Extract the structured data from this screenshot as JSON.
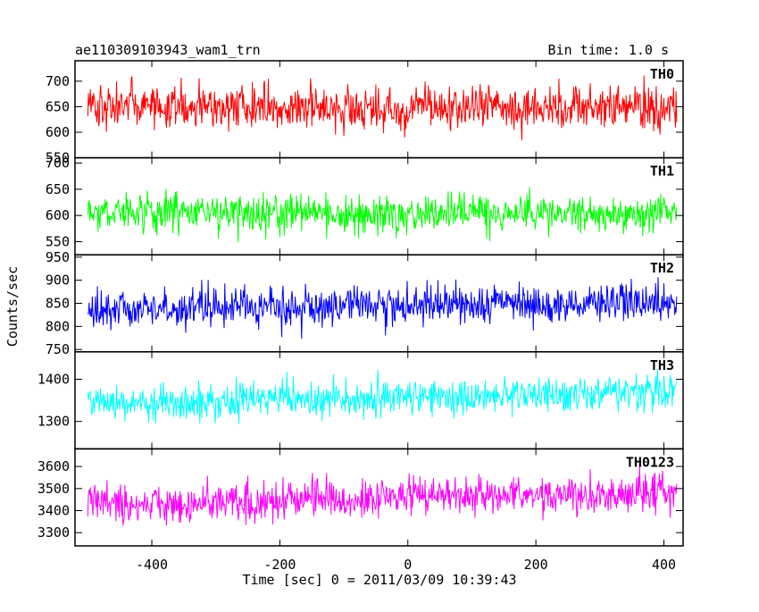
{
  "chart_data": {
    "type": "line",
    "title": "ae110309103943_wam1_trn",
    "subtitle": "Bin time: 1.0 s",
    "xlabel": "Time [sec] 0 = 2011/03/09 10:39:43",
    "ylabel": "Counts/sec",
    "xlim": [
      -520,
      430
    ],
    "x_range": [
      -500,
      420
    ],
    "x_step": 1,
    "x_ticks": [
      -400,
      -200,
      0,
      200,
      400
    ],
    "grid": false,
    "legend": "panel labels top-right",
    "panels": [
      {
        "name": "TH0",
        "color": "#ff0000",
        "ylim": [
          550,
          740
        ],
        "y_ticks": [
          550,
          600,
          650,
          700
        ],
        "mean": 648,
        "amplitude": 55,
        "trend": 0
      },
      {
        "name": "TH1",
        "color": "#00ff00",
        "ylim": [
          525,
          710
        ],
        "y_ticks": [
          550,
          600,
          650,
          700
        ],
        "mean": 605,
        "amplitude": 48,
        "trend": 0
      },
      {
        "name": "TH2",
        "color": "#0000ff",
        "ylim": [
          745,
          955
        ],
        "y_ticks": [
          750,
          800,
          850,
          900,
          950
        ],
        "mean": 845,
        "amplitude": 55,
        "trend": 8
      },
      {
        "name": "TH3",
        "color": "#00ffff",
        "ylim": [
          1235,
          1465
        ],
        "y_ticks": [
          1300,
          1400
        ],
        "mean": 1355,
        "amplitude": 55,
        "trend": 15
      },
      {
        "name": "TH0123",
        "color": "#ff00ff",
        "ylim": [
          3240,
          3680
        ],
        "y_ticks": [
          3300,
          3400,
          3500,
          3600
        ],
        "mean": 3455,
        "amplitude": 110,
        "trend": 25
      }
    ]
  }
}
